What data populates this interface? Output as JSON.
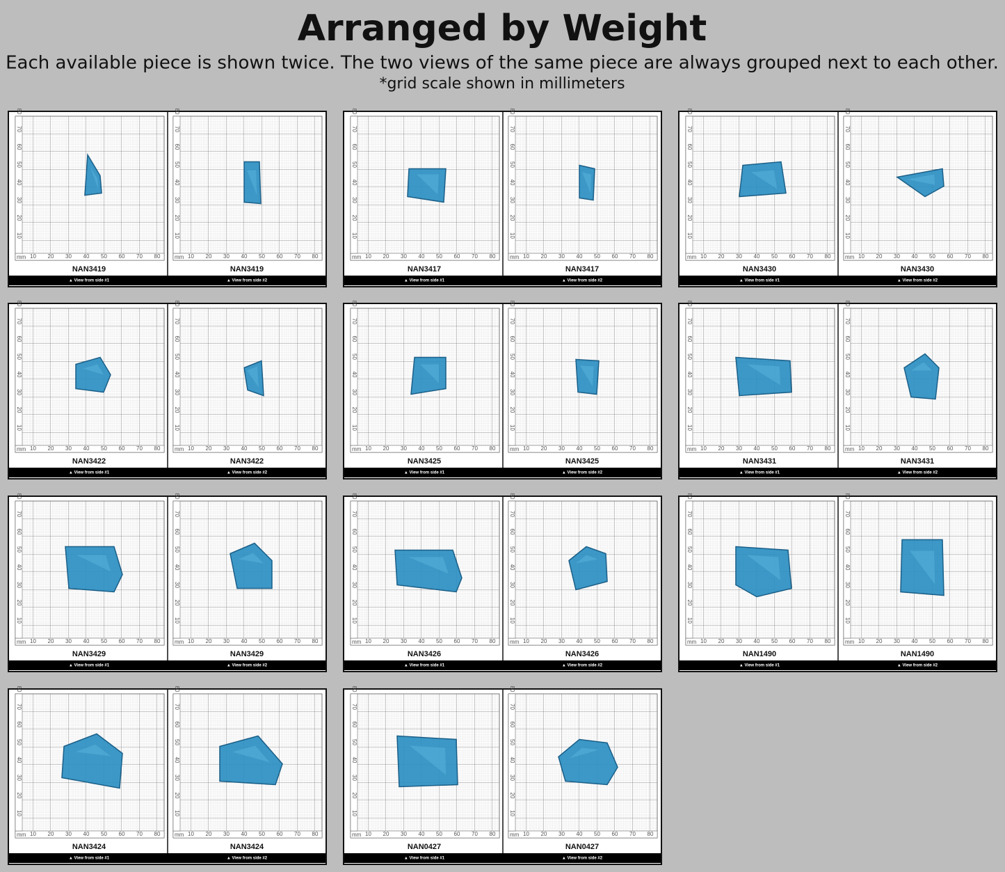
{
  "header": {
    "title": "Arranged by Weight",
    "subtitle": "Each available piece is shown twice. The two views of the same piece are always grouped next to each other.",
    "note": "*grid scale shown in millimeters"
  },
  "grid": {
    "unit": "mm",
    "ticks": [
      "10",
      "20",
      "30",
      "40",
      "50",
      "60",
      "70",
      "80"
    ]
  },
  "views": [
    "▲ View from side #1",
    "▲ View from side #2"
  ],
  "pieces": [
    {
      "id": "NAN3419"
    },
    {
      "id": "NAN3417"
    },
    {
      "id": "NAN3430"
    },
    {
      "id": "NAN3422"
    },
    {
      "id": "NAN3425"
    },
    {
      "id": "NAN3431"
    },
    {
      "id": "NAN3429"
    },
    {
      "id": "NAN3426"
    },
    {
      "id": "NAN1490"
    },
    {
      "id": "NAN3424"
    },
    {
      "id": "NAN0427"
    }
  ]
}
